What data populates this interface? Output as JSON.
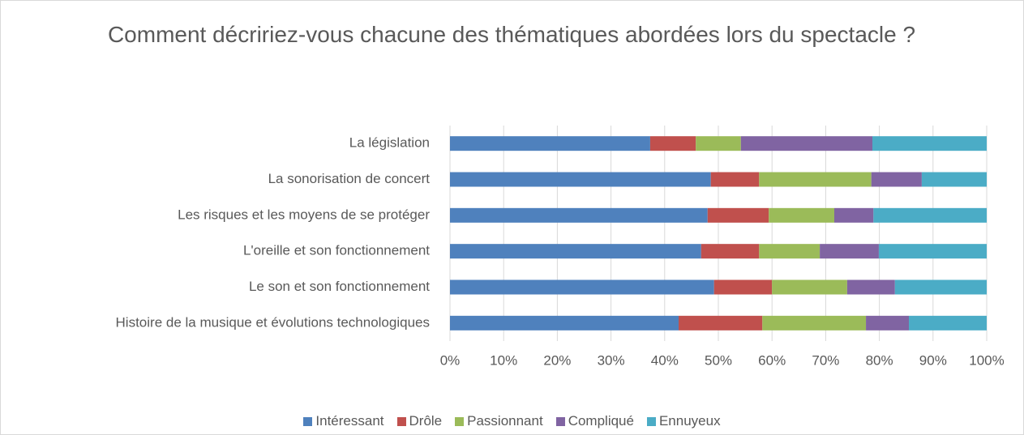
{
  "chart_data": {
    "type": "stacked_barh",
    "title": "Comment décririez-vous chacune des thématiques abordées lors du spectacle ?",
    "categories": [
      "La législation",
      "La sonorisation de concert",
      "Les risques et les moyens de se protéger",
      "L'oreille et son fonctionnement",
      "Le son et son fonctionnement",
      "Histoire de la musique et évolutions technologiques"
    ],
    "series": [
      {
        "name": "Intéressant",
        "color": "#4f81bd",
        "values": [
          37.3,
          48.6,
          48.0,
          46.8,
          49.2,
          42.6
        ]
      },
      {
        "name": "Drôle",
        "color": "#c0504d",
        "values": [
          8.5,
          9.0,
          11.4,
          10.8,
          10.8,
          15.6
        ]
      },
      {
        "name": "Passionnant",
        "color": "#9bbb59",
        "values": [
          8.4,
          20.9,
          12.2,
          11.3,
          14.0,
          19.3
        ]
      },
      {
        "name": "Compliqué",
        "color": "#8064a2",
        "values": [
          24.5,
          9.4,
          7.3,
          11.0,
          8.9,
          8.0
        ]
      },
      {
        "name": "Ennuyeux",
        "color": "#4bacc6",
        "values": [
          21.3,
          12.1,
          21.1,
          20.1,
          17.1,
          14.5
        ]
      }
    ],
    "xlim": [
      0,
      100
    ],
    "xticks": [
      {
        "value": 0,
        "label": "0%"
      },
      {
        "value": 10,
        "label": "10%"
      },
      {
        "value": 20,
        "label": "20%"
      },
      {
        "value": 30,
        "label": "30%"
      },
      {
        "value": 40,
        "label": "40%"
      },
      {
        "value": 50,
        "label": "50%"
      },
      {
        "value": 60,
        "label": "60%"
      },
      {
        "value": 70,
        "label": "70%"
      },
      {
        "value": 80,
        "label": "80%"
      },
      {
        "value": 90,
        "label": "90%"
      },
      {
        "value": 100,
        "label": "100%"
      }
    ],
    "grid": true,
    "legend": "bottom"
  }
}
